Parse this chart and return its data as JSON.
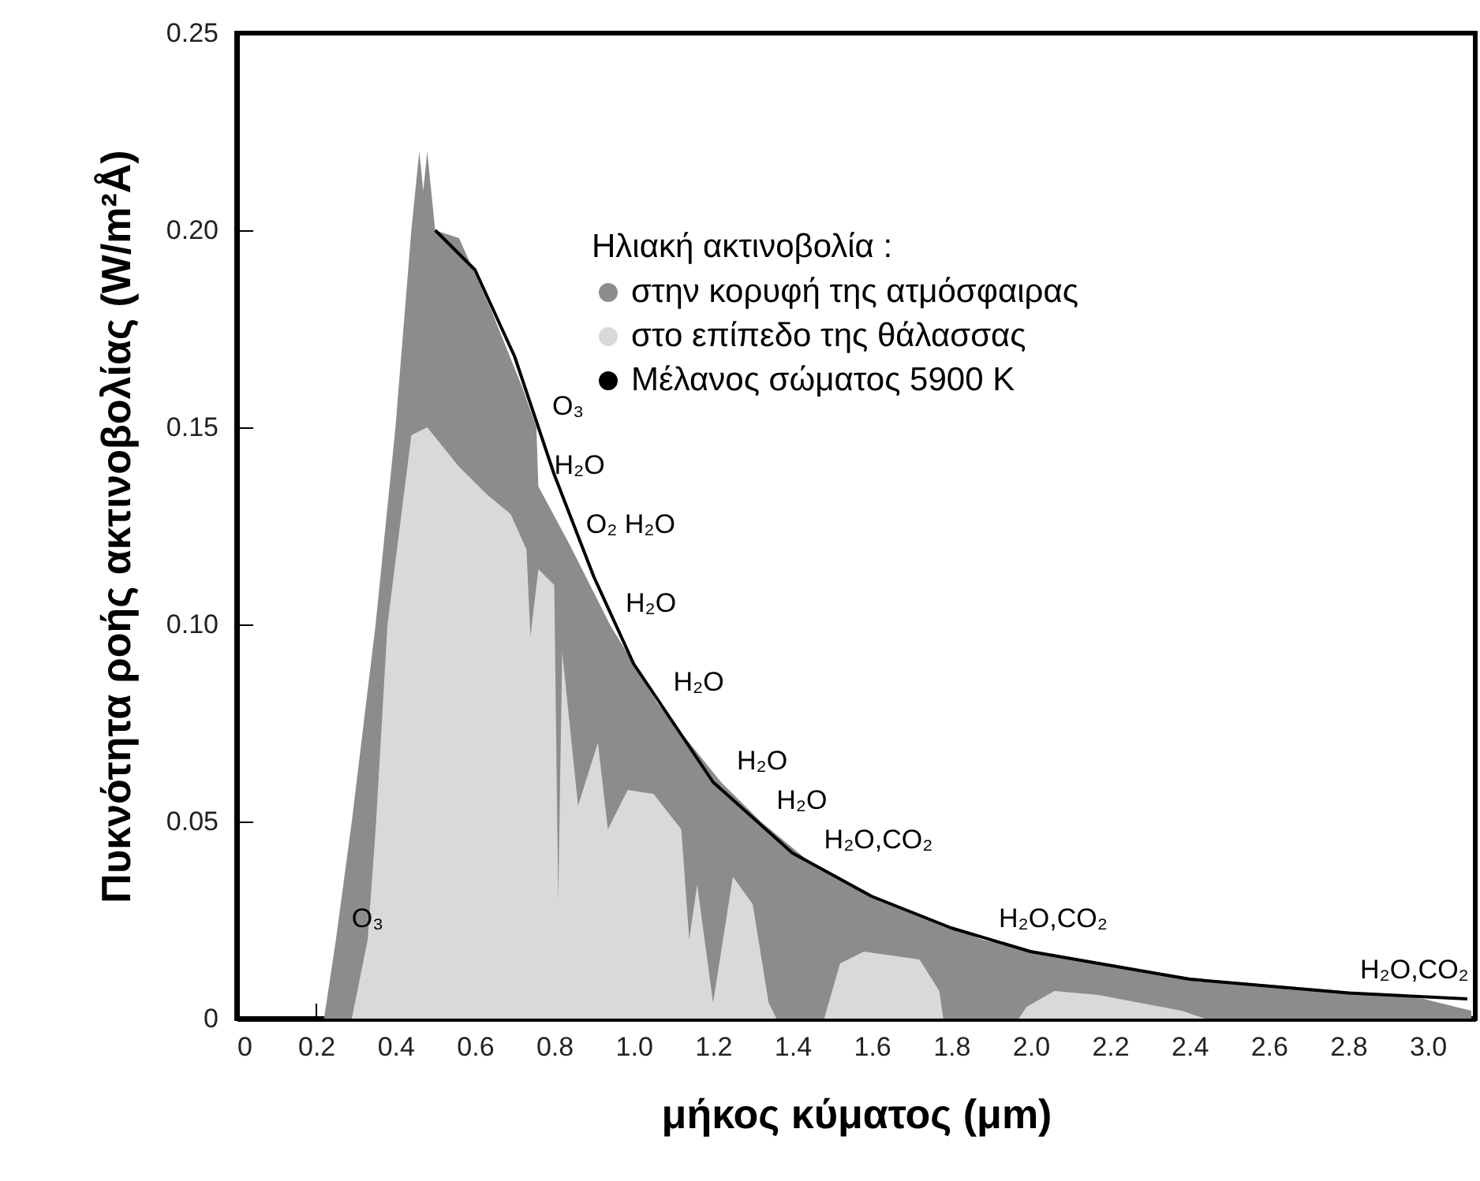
{
  "chart_data": {
    "type": "area",
    "xlabel": "μήκος κύματος (μm)",
    "ylabel": "Πυκνότητα ροής ακτινοβολίας (W/m²Å)",
    "legend_title": "Ηλιακή ακτινοβολία :",
    "legend": "top right",
    "grid": false,
    "xlim": [
      0,
      3.12
    ],
    "ylim": [
      0,
      0.25
    ],
    "xticks": [
      0,
      0.2,
      0.4,
      0.6,
      0.8,
      {
        "value": 1,
        "label": "1.0"
      },
      1.2,
      1.4,
      1.6,
      1.8,
      {
        "value": 2,
        "label": "2.0"
      },
      2.2,
      2.4,
      2.6,
      2.8,
      {
        "value": 3,
        "label": "3.0"
      }
    ],
    "yticks": [
      0,
      0.05,
      {
        "value": 0.1,
        "label": "0.10"
      },
      0.15,
      {
        "value": 0.2,
        "label": "0.20"
      },
      0.25
    ],
    "series": [
      {
        "name": "στην κορυφή της ατμόσφαιρας",
        "color": "#8c8c8c",
        "x": [
          0.22,
          0.25,
          0.29,
          0.35,
          0.4,
          0.44,
          0.46,
          0.47,
          0.48,
          0.5,
          0.56,
          0.64,
          0.72,
          0.755,
          0.76,
          0.84,
          0.94,
          1.06,
          1.22,
          1.32,
          1.44,
          1.62,
          1.88,
          2.11,
          2.43,
          2.79,
          2.99,
          3.11
        ],
        "values": [
          0,
          0.02,
          0.05,
          0.1,
          0.15,
          0.2,
          0.22,
          0.21,
          0.22,
          0.2,
          0.198,
          0.18,
          0.16,
          0.15,
          0.135,
          0.12,
          0.1,
          0.08,
          0.06,
          0.05,
          0.04,
          0.03,
          0.02,
          0.015,
          0.01,
          0.007,
          0.005,
          0.002
        ]
      },
      {
        "name": "στο επίπεδο της θάλασσας",
        "color": "#d9d9d9",
        "x": [
          0.29,
          0.33,
          0.35,
          0.38,
          0.44,
          0.48,
          0.56,
          0.63,
          0.69,
          0.73,
          0.74,
          0.76,
          0.8,
          0.81,
          0.82,
          0.86,
          0.91,
          0.935,
          0.985,
          1.05,
          1.12,
          1.14,
          1.16,
          1.2,
          1.25,
          1.3,
          1.34,
          1.36,
          1.48,
          1.52,
          1.58,
          1.72,
          1.77,
          1.78,
          1.97,
          1.99,
          2.06,
          2.17,
          2.38,
          2.44,
          3.12
        ],
        "values": [
          0,
          0.02,
          0.048,
          0.1,
          0.148,
          0.15,
          0.14,
          0.133,
          0.128,
          0.119,
          0.097,
          0.114,
          0.11,
          0.03,
          0.093,
          0.054,
          0.07,
          0.048,
          0.058,
          0.057,
          0.048,
          0.02,
          0.034,
          0.004,
          0.036,
          0.029,
          0.004,
          0,
          0,
          0.014,
          0.017,
          0.015,
          0.007,
          0,
          0,
          0.003,
          0.007,
          0.006,
          0.002,
          0,
          0
        ]
      },
      {
        "name": "Μέλανος σώματος  5900 K",
        "type": "line",
        "color": "#000000",
        "x": [
          0.5,
          0.6,
          0.7,
          0.8,
          0.9,
          1,
          1.2,
          1.4,
          1.6,
          1.8,
          2,
          2.4,
          2.8,
          3.1
        ],
        "values": [
          0.2,
          0.19,
          0.168,
          0.138,
          0.112,
          0.09,
          0.06,
          0.042,
          0.031,
          0.023,
          0.017,
          0.01,
          0.0065,
          0.005
        ]
      }
    ],
    "annotations": [
      {
        "text": "O₃",
        "x": 0.25,
        "y": 0.02
      },
      {
        "text": "O₃",
        "x": 0.755,
        "y": 0.15
      },
      {
        "text": "H₂O",
        "x": 0.76,
        "y": 0.135
      },
      {
        "text": "O₂ H₂O",
        "x": 0.84,
        "y": 0.12
      },
      {
        "text": "H₂O",
        "x": 0.94,
        "y": 0.1
      },
      {
        "text": "H₂O",
        "x": 1.06,
        "y": 0.08
      },
      {
        "text": "H₂O",
        "x": 1.22,
        "y": 0.06
      },
      {
        "text": "H₂O",
        "x": 1.32,
        "y": 0.05
      },
      {
        "text": "H₂O,CO₂",
        "x": 1.44,
        "y": 0.04
      },
      {
        "text": "H₂O,CO₂",
        "x": 1.88,
        "y": 0.02
      },
      {
        "text": "H₂O,CO₂",
        "x": 2.79,
        "y": 0.007
      }
    ]
  }
}
